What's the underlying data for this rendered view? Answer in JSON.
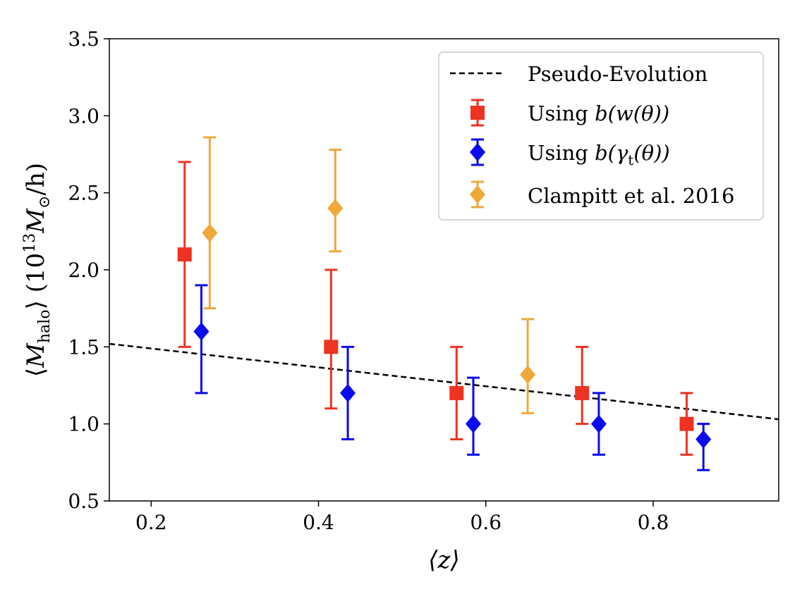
{
  "chart_data": {
    "type": "scatter",
    "title": "",
    "xlabel": "⟨z⟩",
    "ylabel_parts": {
      "open": "⟨",
      "m": "M",
      "sub": "halo",
      "close": "⟩ (10",
      "exp": "13",
      "rest": "M",
      "sun": "⊙",
      "tail": "/h)"
    },
    "xlim": [
      0.15,
      0.95
    ],
    "ylim": [
      0.5,
      3.5
    ],
    "xticks": [
      0.2,
      0.4,
      0.6,
      0.8
    ],
    "xtick_labels": [
      "0.2",
      "0.4",
      "0.6",
      "0.8"
    ],
    "yticks": [
      0.5,
      1.0,
      1.5,
      2.0,
      2.5,
      3.0,
      3.5
    ],
    "ytick_labels": [
      "0.5",
      "1.0",
      "1.5",
      "2.0",
      "2.5",
      "3.0",
      "3.5"
    ],
    "grid": false,
    "legend_position": "top-right",
    "line": {
      "label": "Pseudo-Evolution",
      "color": "#000000",
      "style": "dashed",
      "x": [
        0.15,
        0.95
      ],
      "y": [
        1.52,
        1.03
      ]
    },
    "series": [
      {
        "label_text": "Using ",
        "label_math": "b(w(θ))",
        "marker": "square",
        "color": "#ee3322",
        "points": [
          {
            "x": 0.24,
            "y": 2.1,
            "ylo": 1.5,
            "yhi": 2.7
          },
          {
            "x": 0.415,
            "y": 1.5,
            "ylo": 1.1,
            "yhi": 2.0
          },
          {
            "x": 0.565,
            "y": 1.2,
            "ylo": 0.9,
            "yhi": 1.5
          },
          {
            "x": 0.715,
            "y": 1.2,
            "ylo": 1.0,
            "yhi": 1.5
          },
          {
            "x": 0.84,
            "y": 1.0,
            "ylo": 0.8,
            "yhi": 1.2
          }
        ]
      },
      {
        "label_text": "Using ",
        "label_math": "b(γ",
        "label_sub": "t",
        "label_math_end": "(θ))",
        "marker": "diamond",
        "color": "#0a0aee",
        "points": [
          {
            "x": 0.26,
            "y": 1.6,
            "ylo": 1.2,
            "yhi": 1.9
          },
          {
            "x": 0.435,
            "y": 1.2,
            "ylo": 0.9,
            "yhi": 1.5
          },
          {
            "x": 0.585,
            "y": 1.0,
            "ylo": 0.8,
            "yhi": 1.3
          },
          {
            "x": 0.735,
            "y": 1.0,
            "ylo": 0.8,
            "yhi": 1.2
          },
          {
            "x": 0.86,
            "y": 0.9,
            "ylo": 0.7,
            "yhi": 1.0
          }
        ]
      },
      {
        "label_text": "Clampitt et al. 2016",
        "marker": "diamond",
        "color": "#f0a83a",
        "points": [
          {
            "x": 0.27,
            "y": 2.24,
            "ylo": 1.75,
            "yhi": 2.86
          },
          {
            "x": 0.42,
            "y": 2.4,
            "ylo": 2.12,
            "yhi": 2.78
          },
          {
            "x": 0.65,
            "y": 1.32,
            "ylo": 1.07,
            "yhi": 1.68
          }
        ]
      }
    ]
  }
}
